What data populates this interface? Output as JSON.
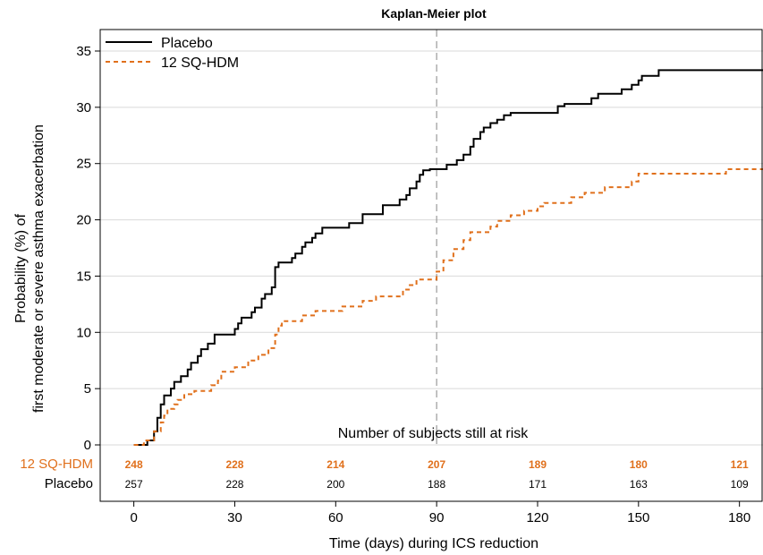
{
  "chart_data": {
    "type": "line",
    "title": "Kaplan-Meier plot",
    "xlabel": "Time (days) during ICS reduction",
    "ylabel_line1": "Probability (%) of",
    "ylabel_line2": "first moderate or severe asthma exacerbation",
    "xlim": [
      -10,
      187
    ],
    "ylim": [
      0,
      36.5
    ],
    "xticks": [
      0,
      30,
      60,
      90,
      120,
      150,
      180
    ],
    "yticks": [
      0,
      5,
      10,
      15,
      20,
      25,
      30,
      35
    ],
    "reference_line_x": 90,
    "legend": [
      "Placebo",
      "12 SQ-HDM"
    ],
    "colors": {
      "placebo": "#000000",
      "hdm": "#E0701C",
      "grid": "#d9d9d9",
      "refline": "#999999"
    },
    "series": [
      {
        "name": "Placebo",
        "style": "solid",
        "points": [
          [
            0,
            0
          ],
          [
            4,
            0
          ],
          [
            4,
            0.4
          ],
          [
            6,
            0.4
          ],
          [
            6,
            1.2
          ],
          [
            7,
            1.2
          ],
          [
            7,
            2.4
          ],
          [
            8,
            2.4
          ],
          [
            8,
            3.6
          ],
          [
            9,
            3.6
          ],
          [
            9,
            4.4
          ],
          [
            11,
            4.4
          ],
          [
            11,
            5.0
          ],
          [
            12,
            5.0
          ],
          [
            12,
            5.6
          ],
          [
            14,
            5.6
          ],
          [
            14,
            6.1
          ],
          [
            16,
            6.1
          ],
          [
            16,
            6.7
          ],
          [
            17,
            6.7
          ],
          [
            17,
            7.3
          ],
          [
            19,
            7.3
          ],
          [
            19,
            7.9
          ],
          [
            20,
            7.9
          ],
          [
            20,
            8.5
          ],
          [
            22,
            8.5
          ],
          [
            22,
            9.0
          ],
          [
            24,
            9.0
          ],
          [
            24,
            9.8
          ],
          [
            30,
            9.8
          ],
          [
            30,
            10.3
          ],
          [
            31,
            10.3
          ],
          [
            31,
            10.8
          ],
          [
            32,
            10.8
          ],
          [
            32,
            11.3
          ],
          [
            35,
            11.3
          ],
          [
            35,
            11.8
          ],
          [
            36,
            11.8
          ],
          [
            36,
            12.2
          ],
          [
            38,
            12.2
          ],
          [
            38,
            13.0
          ],
          [
            39,
            13.0
          ],
          [
            39,
            13.4
          ],
          [
            41,
            13.4
          ],
          [
            41,
            14.0
          ],
          [
            42,
            14.0
          ],
          [
            42,
            15.8
          ],
          [
            43,
            15.8
          ],
          [
            43,
            16.2
          ],
          [
            47,
            16.2
          ],
          [
            47,
            16.6
          ],
          [
            48,
            16.6
          ],
          [
            48,
            17.0
          ],
          [
            50,
            17.0
          ],
          [
            50,
            17.6
          ],
          [
            51,
            17.6
          ],
          [
            51,
            18.0
          ],
          [
            53,
            18.0
          ],
          [
            53,
            18.4
          ],
          [
            54,
            18.4
          ],
          [
            54,
            18.8
          ],
          [
            56,
            18.8
          ],
          [
            56,
            19.3
          ],
          [
            64,
            19.3
          ],
          [
            64,
            19.7
          ],
          [
            68,
            19.7
          ],
          [
            68,
            20.5
          ],
          [
            74,
            20.5
          ],
          [
            74,
            21.3
          ],
          [
            79,
            21.3
          ],
          [
            79,
            21.8
          ],
          [
            81,
            21.8
          ],
          [
            81,
            22.2
          ],
          [
            82,
            22.2
          ],
          [
            82,
            22.8
          ],
          [
            84,
            22.8
          ],
          [
            84,
            23.4
          ],
          [
            85,
            23.4
          ],
          [
            85,
            24.0
          ],
          [
            86,
            24.0
          ],
          [
            86,
            24.4
          ],
          [
            88,
            24.4
          ],
          [
            88,
            24.5
          ],
          [
            93,
            24.5
          ],
          [
            93,
            24.9
          ],
          [
            96,
            24.9
          ],
          [
            96,
            25.3
          ],
          [
            98,
            25.3
          ],
          [
            98,
            25.8
          ],
          [
            100,
            25.8
          ],
          [
            100,
            26.5
          ],
          [
            101,
            26.5
          ],
          [
            101,
            27.2
          ],
          [
            103,
            27.2
          ],
          [
            103,
            27.8
          ],
          [
            104,
            27.8
          ],
          [
            104,
            28.2
          ],
          [
            106,
            28.2
          ],
          [
            106,
            28.6
          ],
          [
            108,
            28.6
          ],
          [
            108,
            28.9
          ],
          [
            110,
            28.9
          ],
          [
            110,
            29.3
          ],
          [
            112,
            29.3
          ],
          [
            112,
            29.5
          ],
          [
            126,
            29.5
          ],
          [
            126,
            30.1
          ],
          [
            128,
            30.1
          ],
          [
            128,
            30.3
          ],
          [
            136,
            30.3
          ],
          [
            136,
            30.8
          ],
          [
            138,
            30.8
          ],
          [
            138,
            31.2
          ],
          [
            145,
            31.2
          ],
          [
            145,
            31.6
          ],
          [
            148,
            31.6
          ],
          [
            148,
            32.0
          ],
          [
            150,
            32.0
          ],
          [
            150,
            32.4
          ],
          [
            151,
            32.4
          ],
          [
            151,
            32.8
          ],
          [
            156,
            32.8
          ],
          [
            156,
            33.3
          ],
          [
            187,
            33.3
          ]
        ]
      },
      {
        "name": "12 SQ-HDM",
        "style": "dashed",
        "points": [
          [
            0,
            0
          ],
          [
            3,
            0
          ],
          [
            3,
            0.4
          ],
          [
            6,
            0.4
          ],
          [
            6,
            1.2
          ],
          [
            8,
            1.2
          ],
          [
            8,
            2.0
          ],
          [
            9,
            2.0
          ],
          [
            9,
            2.6
          ],
          [
            10,
            2.6
          ],
          [
            10,
            3.2
          ],
          [
            12,
            3.2
          ],
          [
            12,
            3.6
          ],
          [
            13,
            3.6
          ],
          [
            13,
            4.0
          ],
          [
            15,
            4.0
          ],
          [
            15,
            4.5
          ],
          [
            18,
            4.5
          ],
          [
            18,
            4.8
          ],
          [
            23,
            4.8
          ],
          [
            23,
            5.3
          ],
          [
            25,
            5.3
          ],
          [
            25,
            5.7
          ],
          [
            26,
            5.7
          ],
          [
            26,
            6.5
          ],
          [
            30,
            6.5
          ],
          [
            30,
            6.9
          ],
          [
            34,
            6.9
          ],
          [
            34,
            7.5
          ],
          [
            37,
            7.5
          ],
          [
            37,
            8.0
          ],
          [
            40,
            8.0
          ],
          [
            40,
            8.6
          ],
          [
            42,
            8.6
          ],
          [
            42,
            9.8
          ],
          [
            43,
            9.8
          ],
          [
            43,
            10.6
          ],
          [
            44,
            10.6
          ],
          [
            44,
            11.0
          ],
          [
            50,
            11.0
          ],
          [
            50,
            11.5
          ],
          [
            54,
            11.5
          ],
          [
            54,
            11.9
          ],
          [
            62,
            11.9
          ],
          [
            62,
            12.3
          ],
          [
            68,
            12.3
          ],
          [
            68,
            12.8
          ],
          [
            72,
            12.8
          ],
          [
            72,
            13.2
          ],
          [
            80,
            13.2
          ],
          [
            80,
            13.8
          ],
          [
            82,
            13.8
          ],
          [
            82,
            14.2
          ],
          [
            84,
            14.2
          ],
          [
            84,
            14.7
          ],
          [
            90,
            14.7
          ],
          [
            90,
            15.4
          ],
          [
            92,
            15.4
          ],
          [
            92,
            16.4
          ],
          [
            95,
            16.4
          ],
          [
            95,
            17.4
          ],
          [
            98,
            17.4
          ],
          [
            98,
            18.2
          ],
          [
            100,
            18.2
          ],
          [
            100,
            18.9
          ],
          [
            106,
            18.9
          ],
          [
            106,
            19.4
          ],
          [
            108,
            19.4
          ],
          [
            108,
            19.9
          ],
          [
            112,
            19.9
          ],
          [
            112,
            20.4
          ],
          [
            116,
            20.4
          ],
          [
            116,
            20.8
          ],
          [
            120,
            20.8
          ],
          [
            120,
            21.2
          ],
          [
            122,
            21.2
          ],
          [
            122,
            21.5
          ],
          [
            130,
            21.5
          ],
          [
            130,
            22.0
          ],
          [
            134,
            22.0
          ],
          [
            134,
            22.4
          ],
          [
            140,
            22.4
          ],
          [
            140,
            22.9
          ],
          [
            148,
            22.9
          ],
          [
            148,
            23.4
          ],
          [
            150,
            23.4
          ],
          [
            150,
            24.1
          ],
          [
            176,
            24.1
          ],
          [
            176,
            24.5
          ],
          [
            187,
            24.5
          ]
        ]
      }
    ],
    "risk_table": {
      "title": "Number of subjects still at risk",
      "days": [
        0,
        30,
        60,
        90,
        120,
        150,
        180
      ],
      "rows": [
        {
          "label": "12 SQ-HDM",
          "values": [
            "248",
            "228",
            "214",
            "207",
            "189",
            "180",
            "121"
          ]
        },
        {
          "label": "Placebo",
          "values": [
            "257",
            "228",
            "200",
            "188",
            "171",
            "163",
            "109"
          ]
        }
      ]
    }
  }
}
